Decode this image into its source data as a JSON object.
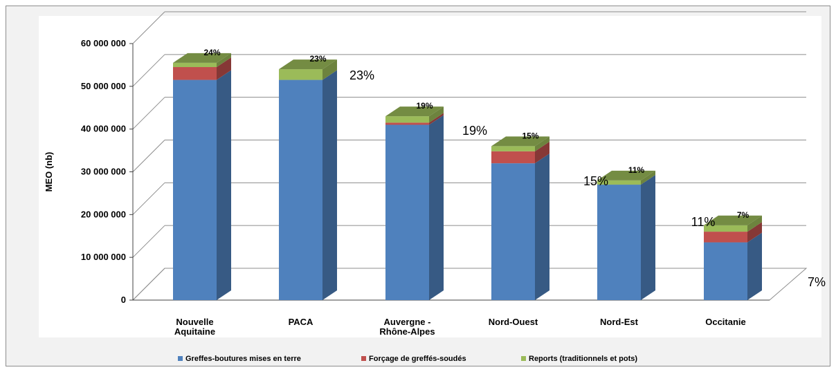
{
  "chart_data": {
    "type": "bar",
    "stacked": true,
    "three_d": true,
    "ylabel": "MEO (nb)",
    "ylim": [
      0,
      60000000
    ],
    "y_ticks": [
      {
        "value": 0,
        "label": "0"
      },
      {
        "value": 10000000,
        "label": "10 000 000"
      },
      {
        "value": 20000000,
        "label": "20 000 000"
      },
      {
        "value": 30000000,
        "label": "30 000 000"
      },
      {
        "value": 40000000,
        "label": "40 000 000"
      },
      {
        "value": 50000000,
        "label": "50 000 000"
      },
      {
        "value": 60000000,
        "label": "60 000 000"
      }
    ],
    "grid": true,
    "legend_position": "bottom",
    "categories": [
      [
        "Nouvelle",
        "Aquitaine"
      ],
      [
        "PACA"
      ],
      [
        "Auvergne -",
        "Rhône-Alpes"
      ],
      [
        "Nord-Ouest"
      ],
      [
        "Nord-Est"
      ],
      [
        "Occitanie"
      ]
    ],
    "series": [
      {
        "name": "Greffes-boutures mises en terre",
        "color": "#4f81bd",
        "values": [
          51500000,
          51500000,
          41000000,
          32000000,
          27000000,
          13500000
        ]
      },
      {
        "name": "Forçage de greffés-soudés",
        "color": "#c0504d",
        "values": [
          3000000,
          0,
          500000,
          2800000,
          0,
          2500000
        ]
      },
      {
        "name": "Reports (traditionnels et pots)",
        "color": "#9bbb59",
        "values": [
          1000000,
          2500000,
          1500000,
          1200000,
          1000000,
          1500000
        ]
      }
    ],
    "bar_labels": [
      "24%",
      "23%",
      "19%",
      "15%",
      "11%",
      "7%"
    ],
    "float_labels": [
      "23%",
      "19%",
      "15%",
      "11%",
      "7%"
    ]
  }
}
